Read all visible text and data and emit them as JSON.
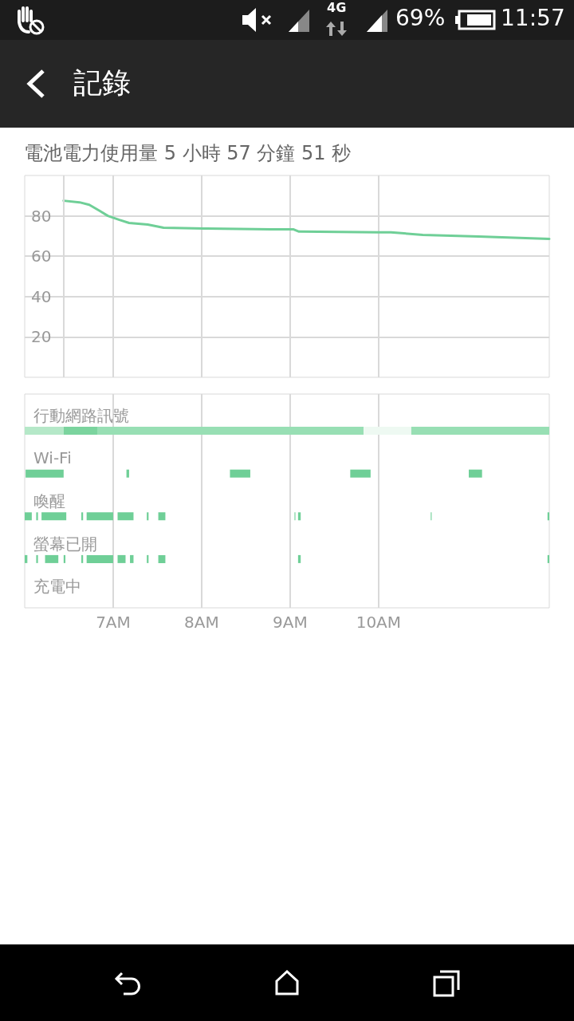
{
  "chart_data": [
    {
      "type": "line",
      "title": "記錄",
      "subtitle": "電池電力使用量 5 小時 57 分鐘 51 秒",
      "annotations": [
        "4G",
        "69%",
        "11:57"
      ],
      "x": [
        6.44,
        6.62,
        6.73,
        6.85,
        6.94,
        7.07,
        7.18,
        7.39,
        7.57,
        8.06,
        8.78,
        9.04,
        9.1,
        10.0,
        10.14,
        10.5,
        11.13,
        11.93
      ],
      "series": [
        {
          "color": "#6fcf97",
          "values": [
            87.5,
            86.7,
            85.5,
            82.4,
            80,
            78,
            76.5,
            75.7,
            74.1,
            73.7,
            73.3,
            73.3,
            72.2,
            71.8,
            71.8,
            70.6,
            69.8,
            68.6
          ]
        }
      ],
      "xlim": [
        6,
        11.93
      ],
      "xticks": [
        {
          "value": 7,
          "label": null
        },
        {
          "value": 8,
          "label": null
        },
        {
          "value": 9,
          "label": null
        },
        {
          "value": 10,
          "label": null
        }
      ],
      "ylim": [
        0,
        100
      ],
      "yticks": [
        20,
        40,
        60,
        80
      ],
      "grid": true,
      "marker": "none",
      "line_style": "solid",
      "tick_labels": "y",
      "ref_lines": [
        {
          "axis": "x",
          "value": 6.44,
          "color": "#d9d9d9"
        }
      ]
    },
    {
      "type": "bar",
      "orientation": "horizontal",
      "categories": [
        "行動網路訊號",
        "Wi-Fi",
        "喚醒",
        "螢幕已開",
        "充電中"
      ],
      "xlim": [
        6,
        11.93
      ],
      "xticks": [
        {
          "value": 7,
          "label": "7AM"
        },
        {
          "value": 8,
          "label": "8AM"
        },
        {
          "value": 9,
          "label": "9AM"
        },
        {
          "value": 10,
          "label": "10AM"
        }
      ],
      "grid": "x",
      "series": [
        {
          "color": "#6fcf97",
          "colors": [
            "#b5e8c8",
            "#6fcf97",
            "#6fcf97",
            "#6fcf97",
            null
          ],
          "base": [
            6.0,
            6.01,
            6.0,
            6.0,
            null
          ],
          "values": [
            0.44,
            0.43,
            0.08,
            0.03,
            null
          ]
        },
        {
          "color": "#6fcf97",
          "colors": [
            "#7bd49e",
            "#6fcf97",
            "#6fcf97",
            "#6fcf97",
            null
          ],
          "base": [
            6.44,
            7.15,
            6.13,
            6.13,
            null
          ],
          "values": [
            0.38,
            0.03,
            0.02,
            0.02,
            null
          ]
        },
        {
          "color": "#6fcf97",
          "colors": [
            "#98dfb4",
            "#6fcf97",
            "#6fcf97",
            "#6fcf97",
            null
          ],
          "base": [
            6.82,
            8.32,
            6.19,
            6.23,
            null
          ],
          "values": [
            3.01,
            0.23,
            0.28,
            0.15,
            null
          ]
        },
        {
          "color": "#6fcf97",
          "colors": [
            "#eef9f2",
            "#6fcf97",
            "#6fcf97",
            "#6fcf97",
            null
          ],
          "base": [
            9.83,
            9.68,
            6.64,
            6.44,
            null
          ],
          "values": [
            0.54,
            0.23,
            0.02,
            0.02,
            null
          ]
        },
        {
          "color": "#6fcf97",
          "colors": [
            "#98dfb4",
            "#6fcf97",
            "#6fcf97",
            "#6fcf97",
            null
          ],
          "base": [
            10.37,
            11.02,
            6.7,
            6.64,
            null
          ],
          "values": [
            1.56,
            0.15,
            0.3,
            0.02,
            null
          ]
        },
        {
          "color": "#6fcf97",
          "base": [
            null,
            null,
            7.05,
            6.7,
            null
          ],
          "values": [
            null,
            null,
            0.18,
            0.3,
            null
          ]
        },
        {
          "color": "#6fcf97",
          "base": [
            null,
            null,
            7.38,
            7.05,
            null
          ],
          "values": [
            null,
            null,
            0.02,
            0.09,
            null
          ]
        },
        {
          "color": "#6fcf97",
          "base": [
            null,
            null,
            7.51,
            7.19,
            null
          ],
          "values": [
            null,
            null,
            0.08,
            0.04,
            null
          ]
        },
        {
          "color": "#6fcf97",
          "base": [
            null,
            null,
            9.05,
            7.38,
            null
          ],
          "values": [
            null,
            null,
            0.01,
            0.02,
            null
          ]
        },
        {
          "color": "#6fcf97",
          "base": [
            null,
            null,
            9.09,
            7.51,
            null
          ],
          "values": [
            null,
            null,
            0.03,
            0.08,
            null
          ]
        },
        {
          "color": "#6fcf97",
          "base": [
            null,
            null,
            10.59,
            9.09,
            null
          ],
          "values": [
            null,
            null,
            0.01,
            0.03,
            null
          ]
        },
        {
          "color": "#6fcf97",
          "base": [
            null,
            null,
            11.91,
            11.91,
            null
          ],
          "values": [
            null,
            null,
            0.02,
            0.02,
            null
          ]
        }
      ]
    }
  ]
}
